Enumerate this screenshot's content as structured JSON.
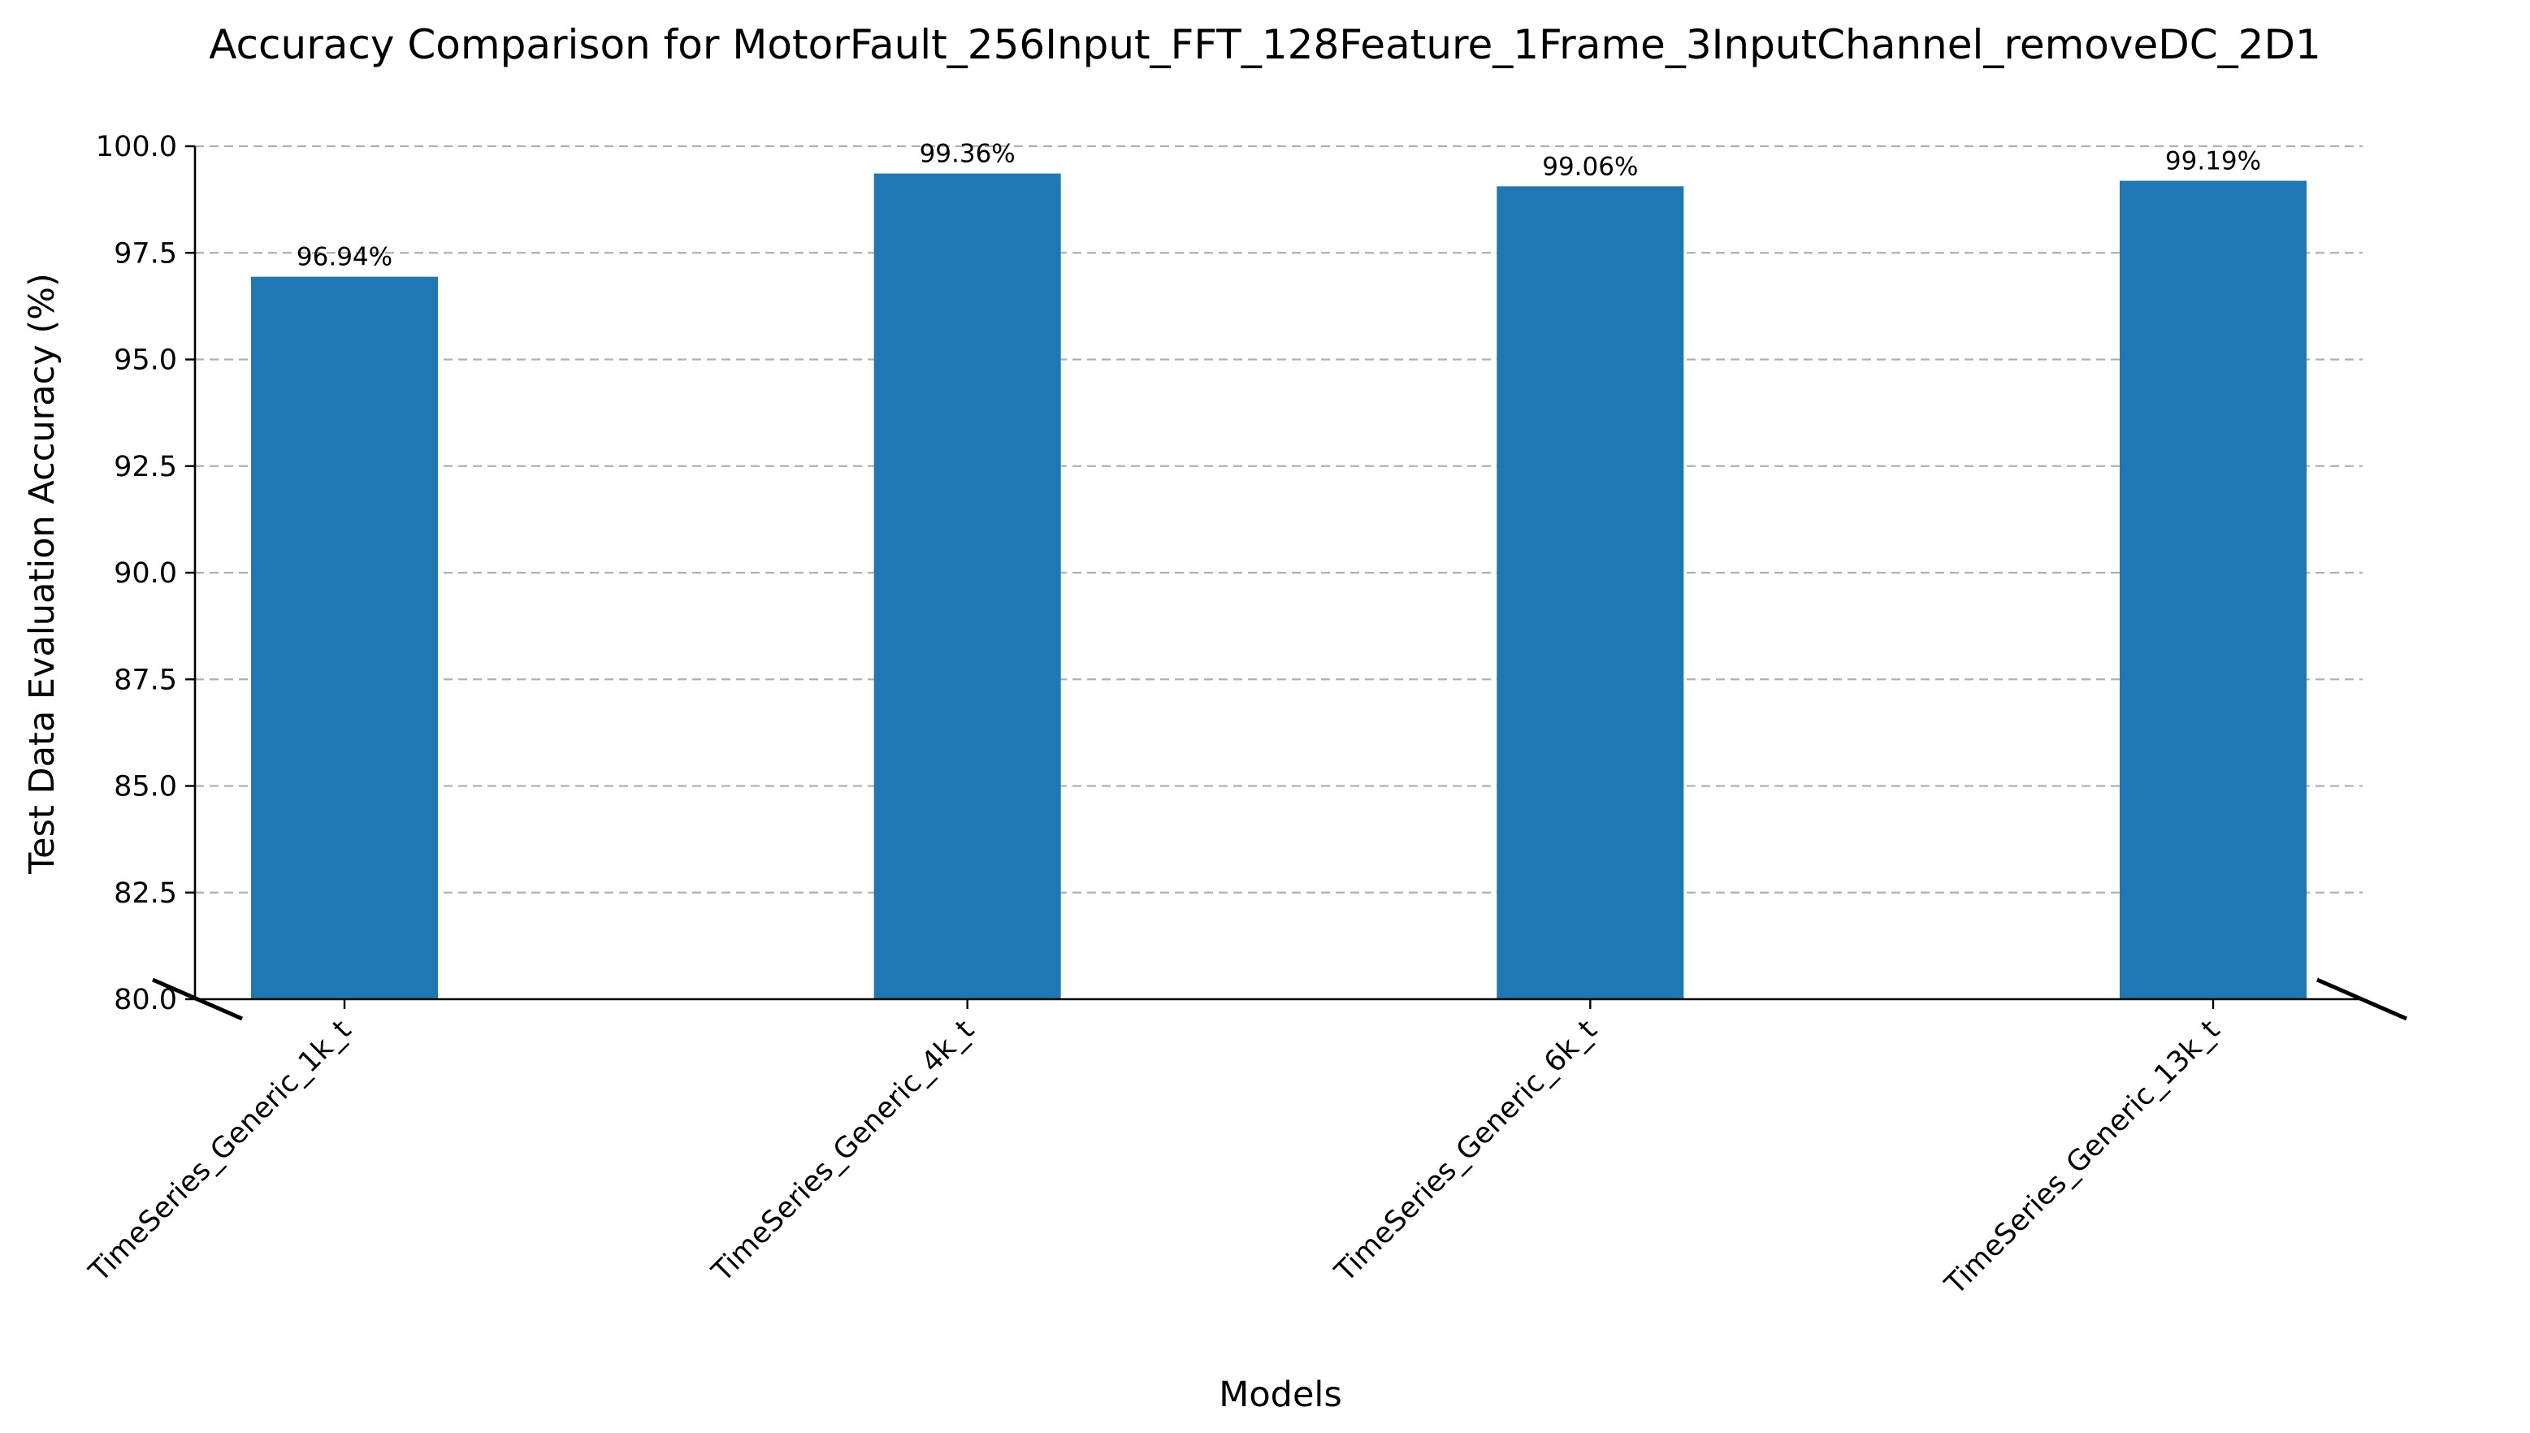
{
  "chart_data": {
    "type": "bar",
    "title": "Accuracy Comparison for MotorFault_256Input_FFT_128Feature_1Frame_3InputChannel_removeDC_2D1",
    "xlabel": "Models",
    "ylabel": "Test Data Evaluation Accuracy (%)",
    "categories": [
      "TimeSeries_Generic_1k_t",
      "TimeSeries_Generic_4k_t",
      "TimeSeries_Generic_6k_t",
      "TimeSeries_Generic_13k_t"
    ],
    "values": [
      96.94,
      99.36,
      99.06,
      99.19
    ],
    "data_labels": [
      "96.94%",
      "99.36%",
      "99.06%",
      "99.19%"
    ],
    "ylim": [
      80,
      100
    ],
    "yticks": [
      80.0,
      82.5,
      85.0,
      87.5,
      90.0,
      92.5,
      95.0,
      97.5,
      100.0
    ],
    "ytick_labels": [
      "80.0",
      "82.5",
      "85.0",
      "87.5",
      "90.0",
      "92.5",
      "95.0",
      "97.5",
      "100.0"
    ],
    "grid": "horizontal dashed",
    "bar_color": "#1f77b4",
    "grid_color": "#b0b0b0",
    "axis_break": true
  }
}
